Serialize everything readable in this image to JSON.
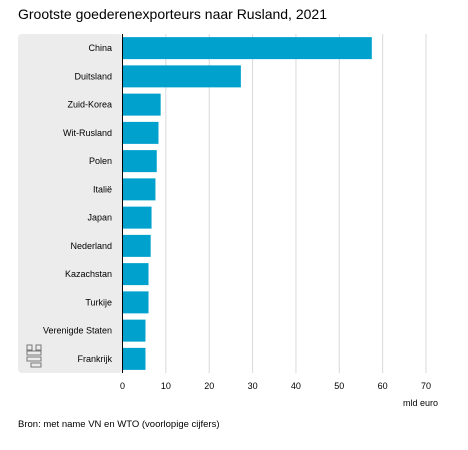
{
  "page": {
    "title": "Grootste goederenexporteurs naar Rusland, 2021",
    "source": "Bron: met name VN en WTO (voorlopige cijfers)"
  },
  "chart_data": {
    "type": "bar",
    "orientation": "horizontal",
    "title": "Grootste goederenexporteurs naar Rusland, 2021",
    "categories": [
      "China",
      "Duitsland",
      "Zuid-Korea",
      "Wit-Rusland",
      "Polen",
      "Italië",
      "Japan",
      "Nederland",
      "Kazachstan",
      "Turkije",
      "Verenigde Staten",
      "Frankrijk"
    ],
    "values": [
      57.5,
      27.3,
      8.8,
      8.3,
      7.9,
      7.6,
      6.7,
      6.5,
      6.0,
      6.0,
      5.3,
      5.3
    ],
    "xlabel": "mld euro",
    "ylabel": "",
    "xlim": [
      0,
      70
    ],
    "xticks": [
      0,
      10,
      20,
      30,
      40,
      50,
      60,
      70
    ],
    "grid": true,
    "bar_color": "#00a1cd",
    "label_panel_color": "#ececec",
    "logo": "cbs-logo-icon"
  }
}
